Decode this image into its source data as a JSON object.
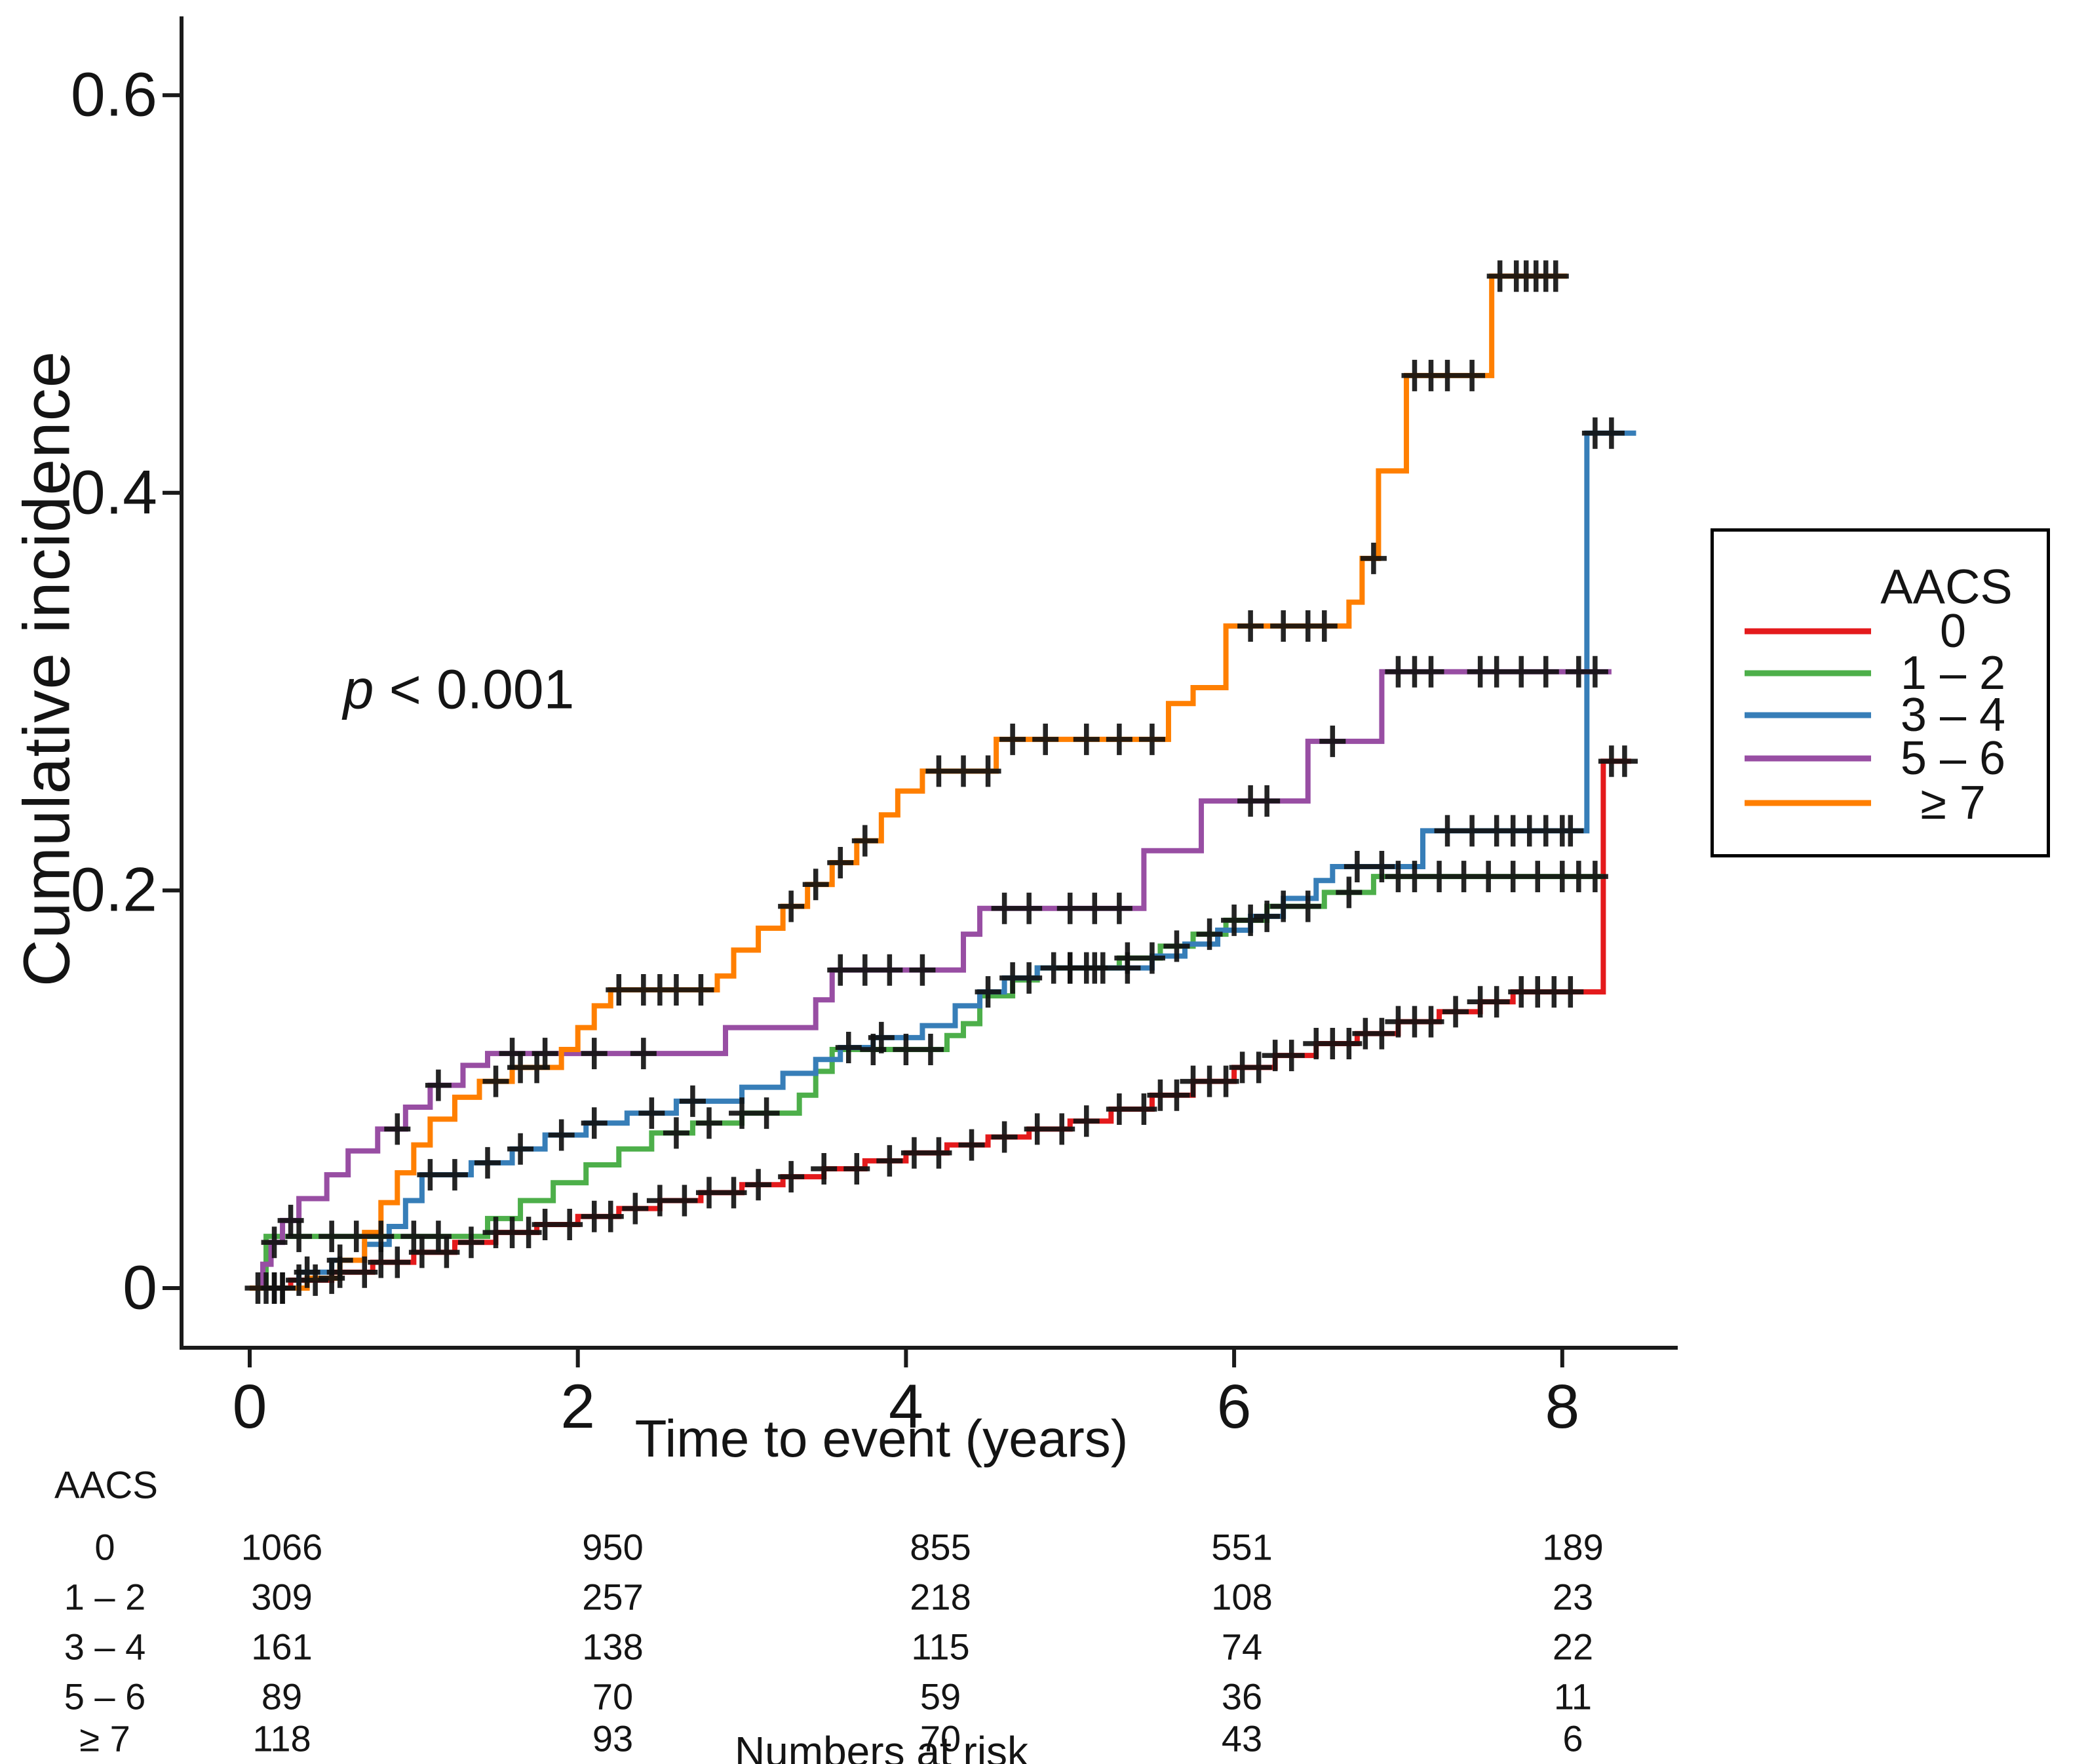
{
  "figure": {
    "p_annotation": {
      "symbol": "p",
      "text": " < 0.001"
    }
  },
  "chart_data": {
    "type": "line",
    "subtype": "cumulative-incidence-step-curves",
    "title": "",
    "xlabel": "Time to event (years)",
    "ylabel": "Cumulative incidence",
    "xlim": [
      0,
      8.6
    ],
    "ylim": [
      0,
      0.62
    ],
    "grid": false,
    "x_ticks": [
      {
        "value": 0,
        "label": "0"
      },
      {
        "value": 2,
        "label": "2"
      },
      {
        "value": 4,
        "label": "4"
      },
      {
        "value": 6,
        "label": "6"
      },
      {
        "value": 8,
        "label": "8"
      }
    ],
    "y_ticks": [
      {
        "value": 0,
        "label": "0"
      },
      {
        "value": 0.2,
        "label": "0.2"
      },
      {
        "value": 0.4,
        "label": "0.4"
      },
      {
        "value": 0.6,
        "label": "0.6"
      }
    ],
    "p_annotation": "p < 0.001",
    "legend": {
      "title": "AACS",
      "position": "right"
    },
    "censor_mark": "plus-icon",
    "series": [
      {
        "name": "0",
        "color": "#e41a1c",
        "end_x": 8.42,
        "steps": [
          [
            0,
            0
          ],
          [
            0.25,
            0.004
          ],
          [
            0.5,
            0.008
          ],
          [
            0.75,
            0.013
          ],
          [
            1.0,
            0.018
          ],
          [
            1.25,
            0.023
          ],
          [
            1.5,
            0.028
          ],
          [
            1.75,
            0.032
          ],
          [
            2.0,
            0.036
          ],
          [
            2.25,
            0.04
          ],
          [
            2.5,
            0.044
          ],
          [
            2.75,
            0.048
          ],
          [
            3.0,
            0.052
          ],
          [
            3.25,
            0.056
          ],
          [
            3.5,
            0.06
          ],
          [
            3.75,
            0.064
          ],
          [
            4.0,
            0.068
          ],
          [
            4.25,
            0.072
          ],
          [
            4.5,
            0.076
          ],
          [
            4.75,
            0.08
          ],
          [
            5.0,
            0.084
          ],
          [
            5.25,
            0.09
          ],
          [
            5.5,
            0.097
          ],
          [
            5.75,
            0.104
          ],
          [
            6.0,
            0.111
          ],
          [
            6.25,
            0.117
          ],
          [
            6.5,
            0.123
          ],
          [
            6.75,
            0.128
          ],
          [
            7.0,
            0.134
          ],
          [
            7.25,
            0.139
          ],
          [
            7.5,
            0.144
          ],
          [
            7.7,
            0.149
          ],
          [
            8.25,
            0.265
          ]
        ],
        "censor_x": [
          0.05,
          0.1,
          0.15,
          0.2,
          0.3,
          0.4,
          0.55,
          0.7,
          0.8,
          0.9,
          1.05,
          1.2,
          1.35,
          1.5,
          1.6,
          1.7,
          1.8,
          1.95,
          2.1,
          2.2,
          2.35,
          2.5,
          2.65,
          2.8,
          2.95,
          3.1,
          3.3,
          3.5,
          3.7,
          3.9,
          4.05,
          4.2,
          4.4,
          4.6,
          4.8,
          4.95,
          5.1,
          5.3,
          5.45,
          5.55,
          5.65,
          5.75,
          5.85,
          5.95,
          6.05,
          6.15,
          6.25,
          6.35,
          6.5,
          6.6,
          6.7,
          6.8,
          6.9,
          7.0,
          7.1,
          7.2,
          7.35,
          7.5,
          7.6,
          7.75,
          7.85,
          7.95,
          8.05,
          8.3,
          8.38
        ]
      },
      {
        "name": "1 – 2",
        "color": "#4daf4a",
        "end_x": 8.25,
        "steps": [
          [
            0,
            0
          ],
          [
            0.1,
            0.026
          ],
          [
            1.45,
            0.035
          ],
          [
            1.65,
            0.044
          ],
          [
            1.85,
            0.053
          ],
          [
            2.05,
            0.062
          ],
          [
            2.25,
            0.07
          ],
          [
            2.45,
            0.078
          ],
          [
            2.7,
            0.083
          ],
          [
            3.0,
            0.088
          ],
          [
            3.35,
            0.097
          ],
          [
            3.45,
            0.109
          ],
          [
            3.55,
            0.12
          ],
          [
            4.25,
            0.127
          ],
          [
            4.35,
            0.133
          ],
          [
            4.45,
            0.147
          ],
          [
            4.65,
            0.155
          ],
          [
            4.8,
            0.161
          ],
          [
            5.3,
            0.166
          ],
          [
            5.55,
            0.172
          ],
          [
            5.75,
            0.178
          ],
          [
            5.95,
            0.185
          ],
          [
            6.2,
            0.192
          ],
          [
            6.55,
            0.199
          ],
          [
            6.85,
            0.207
          ]
        ],
        "censor_x": [
          0.3,
          0.5,
          0.65,
          0.8,
          1.0,
          1.15,
          2.6,
          2.8,
          3.0,
          3.15,
          3.8,
          4.0,
          4.15,
          5.0,
          5.15,
          5.35,
          5.5,
          5.65,
          5.85,
          6.0,
          6.1,
          6.3,
          6.45,
          6.7,
          7.0,
          7.1,
          7.25,
          7.4,
          7.55,
          7.7,
          7.85,
          8.0,
          8.1,
          8.2
        ]
      },
      {
        "name": "3 – 4",
        "color": "#377eb8",
        "end_x": 8.45,
        "steps": [
          [
            0,
            0
          ],
          [
            0.3,
            0.008
          ],
          [
            0.5,
            0.014
          ],
          [
            0.7,
            0.022
          ],
          [
            0.85,
            0.031
          ],
          [
            0.95,
            0.044
          ],
          [
            1.05,
            0.057
          ],
          [
            1.35,
            0.063
          ],
          [
            1.6,
            0.07
          ],
          [
            1.8,
            0.077
          ],
          [
            2.05,
            0.083
          ],
          [
            2.3,
            0.088
          ],
          [
            2.6,
            0.094
          ],
          [
            3.0,
            0.101
          ],
          [
            3.25,
            0.108
          ],
          [
            3.45,
            0.115
          ],
          [
            3.6,
            0.121
          ],
          [
            3.8,
            0.126
          ],
          [
            4.1,
            0.132
          ],
          [
            4.3,
            0.142
          ],
          [
            4.45,
            0.149
          ],
          [
            4.6,
            0.156
          ],
          [
            4.8,
            0.161
          ],
          [
            5.5,
            0.167
          ],
          [
            5.7,
            0.173
          ],
          [
            5.9,
            0.18
          ],
          [
            6.1,
            0.187
          ],
          [
            6.3,
            0.196
          ],
          [
            6.5,
            0.205
          ],
          [
            6.6,
            0.212
          ],
          [
            7.15,
            0.23
          ],
          [
            8.15,
            0.43
          ]
        ],
        "censor_x": [
          0.2,
          0.35,
          0.55,
          1.1,
          1.25,
          1.45,
          1.65,
          1.9,
          2.1,
          2.45,
          2.7,
          3.65,
          3.85,
          4.5,
          4.65,
          4.75,
          4.9,
          5.0,
          5.1,
          5.2,
          5.35,
          6.2,
          6.75,
          6.9,
          7.3,
          7.45,
          7.6,
          7.7,
          7.8,
          7.9,
          8.0,
          8.05,
          8.2,
          8.3
        ]
      },
      {
        "name": "5 – 6",
        "color": "#984ea3",
        "end_x": 8.3,
        "steps": [
          [
            0,
            0
          ],
          [
            0.08,
            0.012
          ],
          [
            0.13,
            0.023
          ],
          [
            0.2,
            0.034
          ],
          [
            0.3,
            0.045
          ],
          [
            0.47,
            0.057
          ],
          [
            0.6,
            0.069
          ],
          [
            0.78,
            0.08
          ],
          [
            0.95,
            0.091
          ],
          [
            1.1,
            0.102
          ],
          [
            1.3,
            0.112
          ],
          [
            1.45,
            0.118
          ],
          [
            2.9,
            0.131
          ],
          [
            3.45,
            0.145
          ],
          [
            3.55,
            0.16
          ],
          [
            4.35,
            0.178
          ],
          [
            4.45,
            0.191
          ],
          [
            5.45,
            0.22
          ],
          [
            5.8,
            0.245
          ],
          [
            6.45,
            0.275
          ],
          [
            6.9,
            0.31
          ]
        ],
        "censor_x": [
          0.15,
          0.25,
          0.9,
          1.15,
          1.6,
          1.8,
          2.1,
          2.4,
          3.6,
          3.75,
          3.9,
          4.1,
          4.6,
          4.75,
          5.0,
          5.15,
          5.3,
          6.1,
          6.2,
          6.6,
          7.0,
          7.1,
          7.2,
          7.5,
          7.6,
          7.75,
          7.9,
          8.1,
          8.2
        ]
      },
      {
        "name": "≥ 7",
        "color": "#ff7f00",
        "end_x": 8.03,
        "steps": [
          [
            0,
            0
          ],
          [
            0.35,
            0.005
          ],
          [
            0.55,
            0.014
          ],
          [
            0.7,
            0.028
          ],
          [
            0.8,
            0.043
          ],
          [
            0.9,
            0.058
          ],
          [
            1.0,
            0.072
          ],
          [
            1.1,
            0.085
          ],
          [
            1.25,
            0.096
          ],
          [
            1.4,
            0.104
          ],
          [
            1.6,
            0.111
          ],
          [
            1.9,
            0.12
          ],
          [
            2.0,
            0.131
          ],
          [
            2.1,
            0.142
          ],
          [
            2.2,
            0.15
          ],
          [
            2.85,
            0.157
          ],
          [
            2.95,
            0.17
          ],
          [
            3.1,
            0.181
          ],
          [
            3.25,
            0.192
          ],
          [
            3.4,
            0.203
          ],
          [
            3.55,
            0.214
          ],
          [
            3.7,
            0.225
          ],
          [
            3.85,
            0.238
          ],
          [
            3.95,
            0.25
          ],
          [
            4.1,
            0.26
          ],
          [
            4.55,
            0.276
          ],
          [
            5.6,
            0.294
          ],
          [
            5.75,
            0.302
          ],
          [
            5.95,
            0.333
          ],
          [
            6.7,
            0.345
          ],
          [
            6.78,
            0.367
          ],
          [
            6.88,
            0.411
          ],
          [
            7.05,
            0.459
          ],
          [
            7.57,
            0.509
          ]
        ],
        "censor_x": [
          0.15,
          0.5,
          1.5,
          1.65,
          1.75,
          2.25,
          2.4,
          2.5,
          2.6,
          2.75,
          3.3,
          3.45,
          3.6,
          3.75,
          4.2,
          4.35,
          4.5,
          4.65,
          4.85,
          5.1,
          5.3,
          5.5,
          6.1,
          6.3,
          6.45,
          6.55,
          6.85,
          7.1,
          7.2,
          7.3,
          7.45,
          7.62,
          7.72,
          7.78,
          7.84,
          7.9,
          7.96
        ]
      }
    ]
  },
  "risk_table": {
    "header": "AACS",
    "caption": "Numbers at risk",
    "time_points": [
      0,
      2,
      4,
      6,
      8
    ],
    "rows": [
      {
        "label": "0",
        "counts": [
          "1066",
          "950",
          "855",
          "551",
          "189"
        ]
      },
      {
        "label": "1 – 2",
        "counts": [
          "309",
          "257",
          "218",
          "108",
          "23"
        ]
      },
      {
        "label": "3 – 4",
        "counts": [
          "161",
          "138",
          "115",
          "74",
          "22"
        ]
      },
      {
        "label": "5 – 6",
        "counts": [
          "89",
          "70",
          "59",
          "36",
          "11"
        ]
      },
      {
        "label": "≥ 7",
        "counts": [
          "118",
          "93",
          "70",
          "43",
          "6"
        ]
      }
    ]
  }
}
